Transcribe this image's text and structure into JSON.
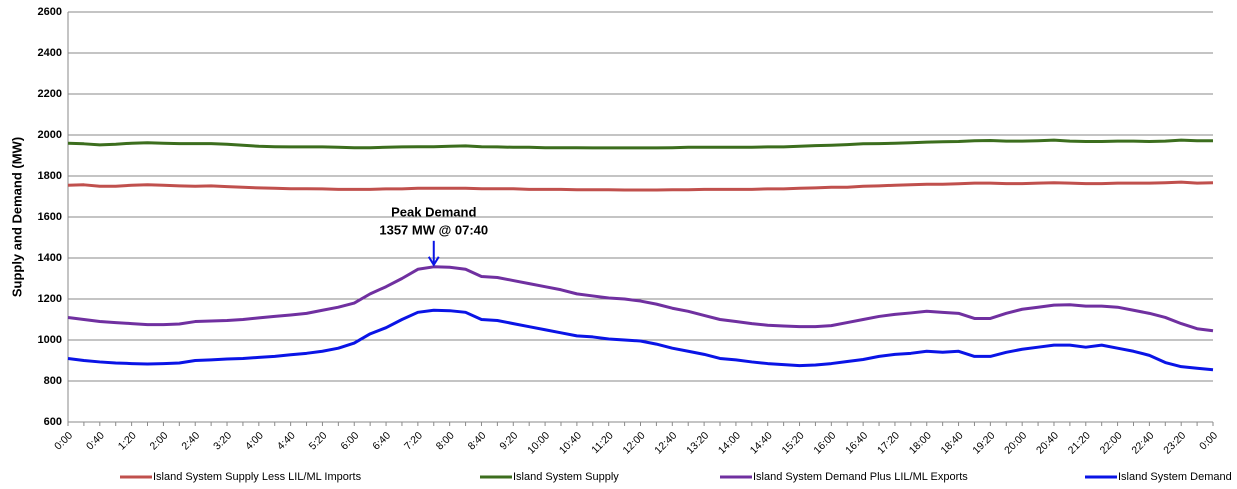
{
  "chart_data": {
    "type": "line",
    "y_label": "Supply and Demand (MW)",
    "annotation": [
      "Peak Demand",
      "1357 MW @ 07:40"
    ],
    "categories": [
      "0:00",
      null,
      "0:40",
      null,
      "1:20",
      null,
      "2:00",
      null,
      "2:40",
      null,
      "3:20",
      null,
      "4:00",
      null,
      "4:40",
      null,
      "5:20",
      null,
      "6:00",
      null,
      "6:40",
      null,
      "7:20",
      null,
      "8:00",
      null,
      "8:40",
      null,
      "9:20",
      null,
      "10:00",
      null,
      "10:40",
      null,
      "11:20",
      null,
      "12:00",
      null,
      "12:40",
      null,
      "13:20",
      null,
      "14:00",
      null,
      "14:40",
      null,
      "15:20",
      null,
      "16:00",
      null,
      "16:40",
      null,
      "17:20",
      null,
      "18:00",
      null,
      "18:40",
      null,
      "19:20",
      null,
      "20:00",
      null,
      "20:40",
      null,
      "21:20",
      null,
      "22:00",
      null,
      "22:40",
      null,
      "23:20",
      null,
      "0:00"
    ],
    "series": [
      {
        "name": "Island System Supply Less LIL/ML Imports",
        "color": "#c0504d",
        "values": [
          1755,
          1757,
          1750,
          1750,
          1755,
          1757,
          1755,
          1752,
          1750,
          1752,
          1748,
          1745,
          1742,
          1740,
          1738,
          1738,
          1737,
          1735,
          1735,
          1735,
          1737,
          1737,
          1740,
          1740,
          1740,
          1740,
          1738,
          1738,
          1738,
          1735,
          1735,
          1735,
          1733,
          1733,
          1733,
          1732,
          1732,
          1732,
          1733,
          1733,
          1735,
          1735,
          1735,
          1735,
          1737,
          1737,
          1740,
          1742,
          1745,
          1745,
          1750,
          1752,
          1755,
          1757,
          1760,
          1760,
          1762,
          1765,
          1765,
          1763,
          1763,
          1765,
          1767,
          1765,
          1763,
          1763,
          1765,
          1765,
          1765,
          1767,
          1770,
          1765,
          1767
        ]
      },
      {
        "name": "Island System Supply",
        "color": "#3c6e1e",
        "values": [
          1960,
          1957,
          1952,
          1955,
          1960,
          1962,
          1960,
          1958,
          1958,
          1958,
          1955,
          1950,
          1945,
          1943,
          1942,
          1942,
          1942,
          1940,
          1938,
          1938,
          1940,
          1942,
          1943,
          1943,
          1945,
          1947,
          1943,
          1942,
          1940,
          1940,
          1938,
          1938,
          1938,
          1937,
          1937,
          1937,
          1937,
          1937,
          1938,
          1940,
          1940,
          1940,
          1940,
          1940,
          1942,
          1942,
          1945,
          1948,
          1950,
          1953,
          1957,
          1958,
          1960,
          1962,
          1965,
          1967,
          1968,
          1972,
          1973,
          1970,
          1970,
          1972,
          1975,
          1970,
          1968,
          1968,
          1970,
          1970,
          1968,
          1970,
          1975,
          1972,
          1972
        ]
      },
      {
        "name": "Island System Demand Plus LIL/ML Exports",
        "color": "#7030a0",
        "values": [
          1110,
          1100,
          1090,
          1085,
          1080,
          1075,
          1075,
          1078,
          1090,
          1093,
          1095,
          1100,
          1108,
          1115,
          1122,
          1130,
          1145,
          1160,
          1180,
          1225,
          1260,
          1300,
          1345,
          1357,
          1355,
          1345,
          1310,
          1305,
          1290,
          1275,
          1260,
          1245,
          1225,
          1215,
          1205,
          1200,
          1190,
          1175,
          1155,
          1140,
          1120,
          1100,
          1090,
          1080,
          1072,
          1068,
          1065,
          1065,
          1070,
          1085,
          1100,
          1115,
          1125,
          1132,
          1140,
          1135,
          1130,
          1105,
          1105,
          1130,
          1150,
          1160,
          1170,
          1172,
          1165,
          1165,
          1160,
          1145,
          1130,
          1110,
          1080,
          1055,
          1045
        ]
      },
      {
        "name": "Island System Demand",
        "color": "#0a14e6",
        "values": [
          910,
          900,
          893,
          888,
          885,
          883,
          885,
          888,
          900,
          903,
          907,
          910,
          915,
          920,
          928,
          935,
          945,
          960,
          985,
          1030,
          1060,
          1100,
          1135,
          1145,
          1143,
          1135,
          1100,
          1095,
          1080,
          1065,
          1050,
          1035,
          1020,
          1015,
          1005,
          1000,
          995,
          980,
          960,
          945,
          930,
          910,
          903,
          893,
          885,
          880,
          875,
          878,
          885,
          895,
          905,
          920,
          930,
          935,
          945,
          940,
          945,
          920,
          920,
          940,
          955,
          965,
          975,
          975,
          965,
          975,
          960,
          945,
          925,
          890,
          870,
          862,
          855
        ]
      }
    ],
    "ylim": [
      600,
      2600
    ],
    "yticks": [
      600,
      800,
      1000,
      1200,
      1400,
      1600,
      1800,
      2000,
      2200,
      2400,
      2600
    ],
    "grid": true
  }
}
